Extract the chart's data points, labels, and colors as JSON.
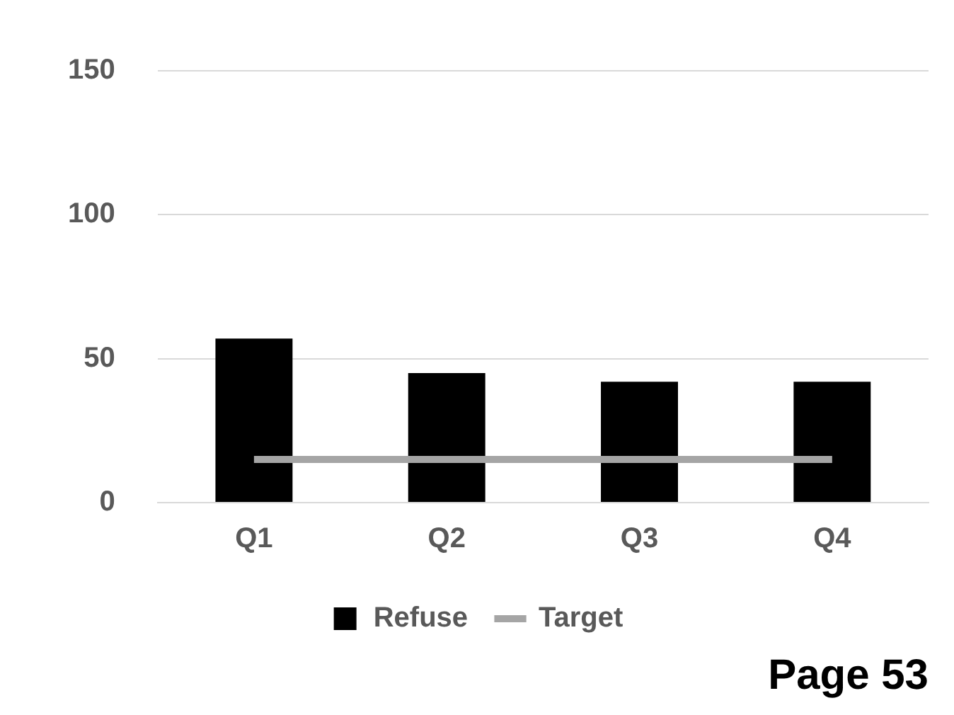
{
  "chart_data": {
    "type": "bar",
    "categories": [
      "Q1",
      "Q2",
      "Q3",
      "Q4"
    ],
    "series": [
      {
        "name": "Refuse",
        "color": "#000000",
        "values": [
          57,
          45,
          42,
          42
        ]
      },
      {
        "name": "Target",
        "type": "line",
        "color": "#a5a5a5",
        "values": [
          15,
          15,
          15,
          15
        ]
      }
    ],
    "ylim": [
      0,
      150
    ],
    "yticks": [
      0,
      50,
      100,
      150
    ],
    "grid": "y",
    "legend": "bottom",
    "marker": "none",
    "annotations": [
      "Page 53"
    ]
  }
}
